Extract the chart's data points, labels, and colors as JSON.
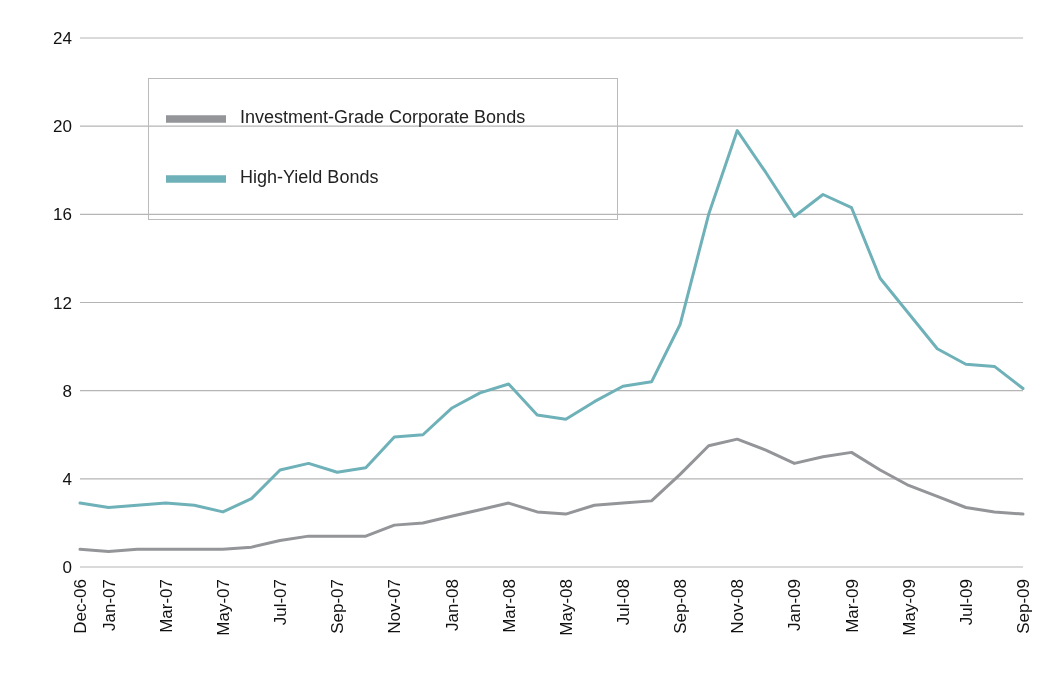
{
  "chart_data": {
    "type": "line",
    "categories": [
      "Dec-06",
      "Jan-07",
      null,
      "Mar-07",
      null,
      "May-07",
      null,
      "Jul-07",
      null,
      "Sep-07",
      null,
      "Nov-07",
      null,
      "Jan-08",
      null,
      "Mar-08",
      null,
      "May-08",
      null,
      "Jul-08",
      null,
      "Sep-08",
      null,
      "Nov-08",
      null,
      "Jan-09",
      null,
      "Mar-09",
      null,
      "May-09",
      null,
      "Jul-09",
      null,
      "Sep-09"
    ],
    "series": [
      {
        "name": "Investment-Grade Corporate Bonds",
        "color": "#939598",
        "values": [
          0.8,
          0.7,
          0.8,
          0.8,
          0.8,
          0.8,
          0.9,
          1.2,
          1.4,
          1.4,
          1.4,
          1.9,
          2.0,
          2.3,
          2.6,
          2.9,
          2.5,
          2.4,
          2.8,
          2.9,
          3.0,
          4.2,
          5.5,
          5.8,
          5.3,
          4.7,
          5.0,
          5.2,
          4.4,
          3.7,
          3.2,
          2.7,
          2.5,
          2.4
        ]
      },
      {
        "name": "High-Yield Bonds",
        "color": "#6fb1b8",
        "values": [
          2.9,
          2.7,
          2.8,
          2.9,
          2.8,
          2.5,
          3.1,
          4.4,
          4.7,
          4.3,
          4.5,
          5.9,
          6.0,
          7.2,
          7.9,
          8.3,
          6.9,
          6.7,
          7.5,
          8.2,
          8.4,
          11.0,
          16.0,
          19.8,
          17.9,
          15.9,
          16.9,
          16.3,
          13.1,
          11.5,
          9.9,
          9.2,
          9.1,
          8.1
        ]
      }
    ],
    "ylim": [
      0,
      24
    ],
    "yticks": [
      0,
      4,
      8,
      12,
      16,
      20,
      24
    ],
    "grid": "y",
    "legend": "top left",
    "marker": "none",
    "line_style": "solid"
  }
}
